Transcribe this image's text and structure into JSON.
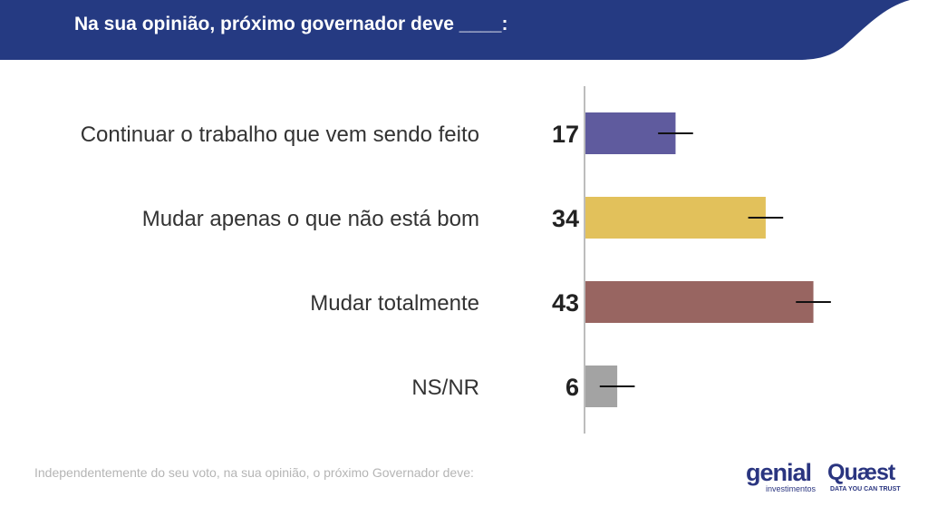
{
  "header": {
    "title": "Na sua opinião, próximo governador deve ____:",
    "color": "#253a82"
  },
  "chart_data": {
    "type": "bar",
    "orientation": "horizontal",
    "title": "Na sua opinião, próximo governador deve ____:",
    "categories": [
      "Continuar o trabalho que vem sendo feito",
      "Mudar apenas o que não está bom",
      "Mudar totalmente",
      "NS/NR"
    ],
    "values": [
      17,
      34,
      43,
      6
    ],
    "value_labels": [
      "17",
      "34",
      "43",
      "6"
    ],
    "error_bars": true,
    "xlim": [
      0,
      60
    ],
    "colors": [
      "#5f5b9e",
      "#e2c15b",
      "#986561",
      "#a3a3a3"
    ],
    "grid": false,
    "legend": "none"
  },
  "footnote": "Independentemente do seu voto, na sua opinião, o próximo Governador deve:",
  "logos": {
    "genial_word": "genial",
    "genial_sub": "investimentos",
    "quaest_word": "Quæst",
    "quaest_tag": "DATA YOU CAN TRUST"
  }
}
